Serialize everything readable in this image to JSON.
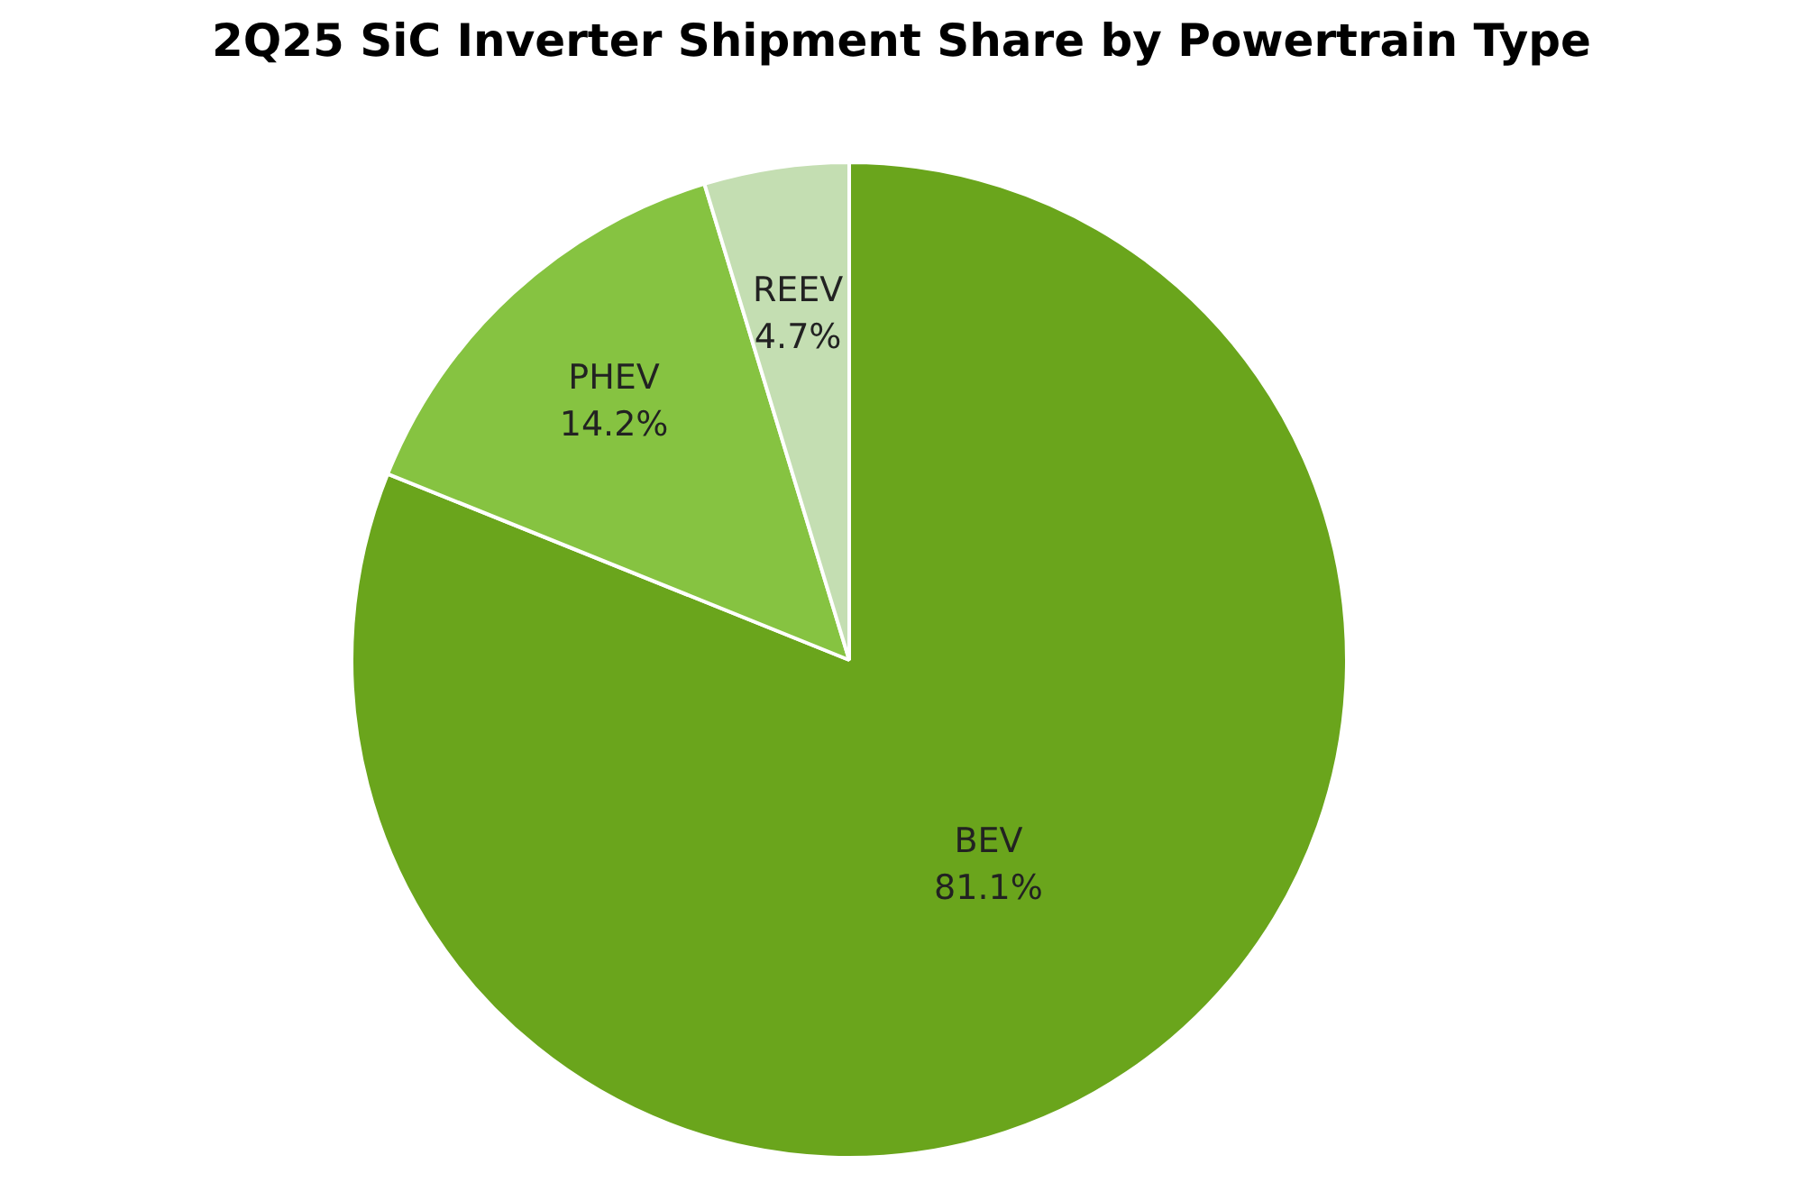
{
  "chart_data": {
    "type": "pie",
    "title": "2Q25 SiC Inverter Shipment Share by Powertrain Type",
    "categories": [
      "BEV",
      "PHEV",
      "REEV"
    ],
    "values": [
      81.1,
      14.2,
      4.7
    ],
    "value_labels": [
      "81.1%",
      "14.2%",
      "4.7%"
    ],
    "colors": [
      "#6aa51c",
      "#86c341",
      "#c4deb2"
    ],
    "legend": false
  }
}
